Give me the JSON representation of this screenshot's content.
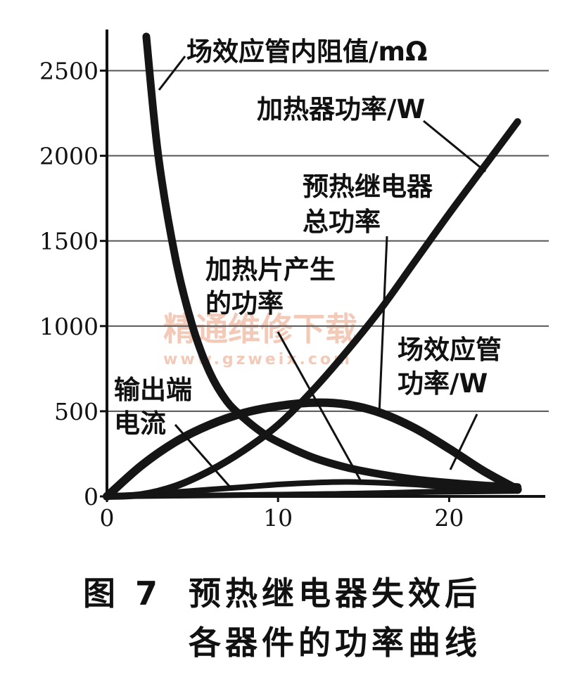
{
  "chart_data": {
    "type": "line",
    "xlabel": "",
    "ylabel": "",
    "xlim": [
      0,
      25
    ],
    "ylim": [
      0,
      2700
    ],
    "xticks": [
      "0",
      "10",
      "20"
    ],
    "yticks": [
      "0",
      "500",
      "1000",
      "1500",
      "2000",
      "2500"
    ],
    "grid": "horizontal",
    "series": [
      {
        "name": "场效应管内阻值/mΩ",
        "x": [
          2.3,
          3,
          4,
          5,
          6,
          7,
          8,
          9,
          10,
          12,
          14,
          16,
          18,
          20,
          22,
          24
        ],
        "y": [
          2700,
          2000,
          1400,
          1000,
          730,
          560,
          460,
          380,
          320,
          230,
          170,
          130,
          100,
          80,
          65,
          55
        ]
      },
      {
        "name": "加热器功率/W",
        "x": [
          0,
          2,
          4,
          6,
          8,
          10,
          12,
          14,
          16,
          18,
          20,
          22,
          24
        ],
        "y": [
          0,
          10,
          60,
          150,
          270,
          420,
          620,
          850,
          1100,
          1380,
          1660,
          1930,
          2200
        ]
      },
      {
        "name": "预热继电器总功率",
        "x": [
          0,
          2,
          4,
          6,
          8,
          10,
          12,
          14,
          16,
          18,
          20,
          22,
          24
        ],
        "y": [
          0,
          180,
          320,
          420,
          490,
          530,
          550,
          540,
          490,
          400,
          280,
          150,
          40
        ]
      },
      {
        "name": "加热片产生的功率",
        "x": [
          0,
          2,
          4,
          6,
          8,
          10,
          12,
          14,
          16,
          18,
          20,
          22,
          24
        ],
        "y": [
          0,
          10,
          25,
          40,
          55,
          70,
          80,
          85,
          80,
          70,
          55,
          45,
          35
        ]
      },
      {
        "name": "场效应管功率/W",
        "x": [
          0,
          4,
          8,
          12,
          16,
          20,
          22,
          24
        ],
        "y": [
          0,
          4,
          8,
          12,
          20,
          30,
          35,
          40
        ]
      },
      {
        "name": "输出端电流",
        "x": [
          0,
          4,
          8,
          12,
          16,
          20,
          24
        ],
        "y": [
          0,
          5,
          10,
          15,
          20,
          25,
          30
        ]
      }
    ],
    "annotations": [
      {
        "series": "场效应管内阻值/mΩ",
        "lines": [
          "场效应管内阻值/mΩ"
        ]
      },
      {
        "series": "加热器功率/W",
        "lines": [
          "加热器功率/W"
        ]
      },
      {
        "series": "预热继电器总功率",
        "lines": [
          "预热继电器",
          "总功率"
        ]
      },
      {
        "series": "加热片产生的功率",
        "lines": [
          "加热片产生",
          "的功率"
        ]
      },
      {
        "series": "场效应管功率/W",
        "lines": [
          "场效应管",
          "功率/W"
        ]
      },
      {
        "series": "输出端电流",
        "lines": [
          "输出端",
          "电流"
        ]
      }
    ]
  },
  "watermark": {
    "text": "精通维修下载",
    "url": "www.gzweix.com"
  },
  "caption": {
    "figure": "图 7",
    "line1": "预热继电器失效后",
    "line2": "各器件的功率曲线"
  }
}
